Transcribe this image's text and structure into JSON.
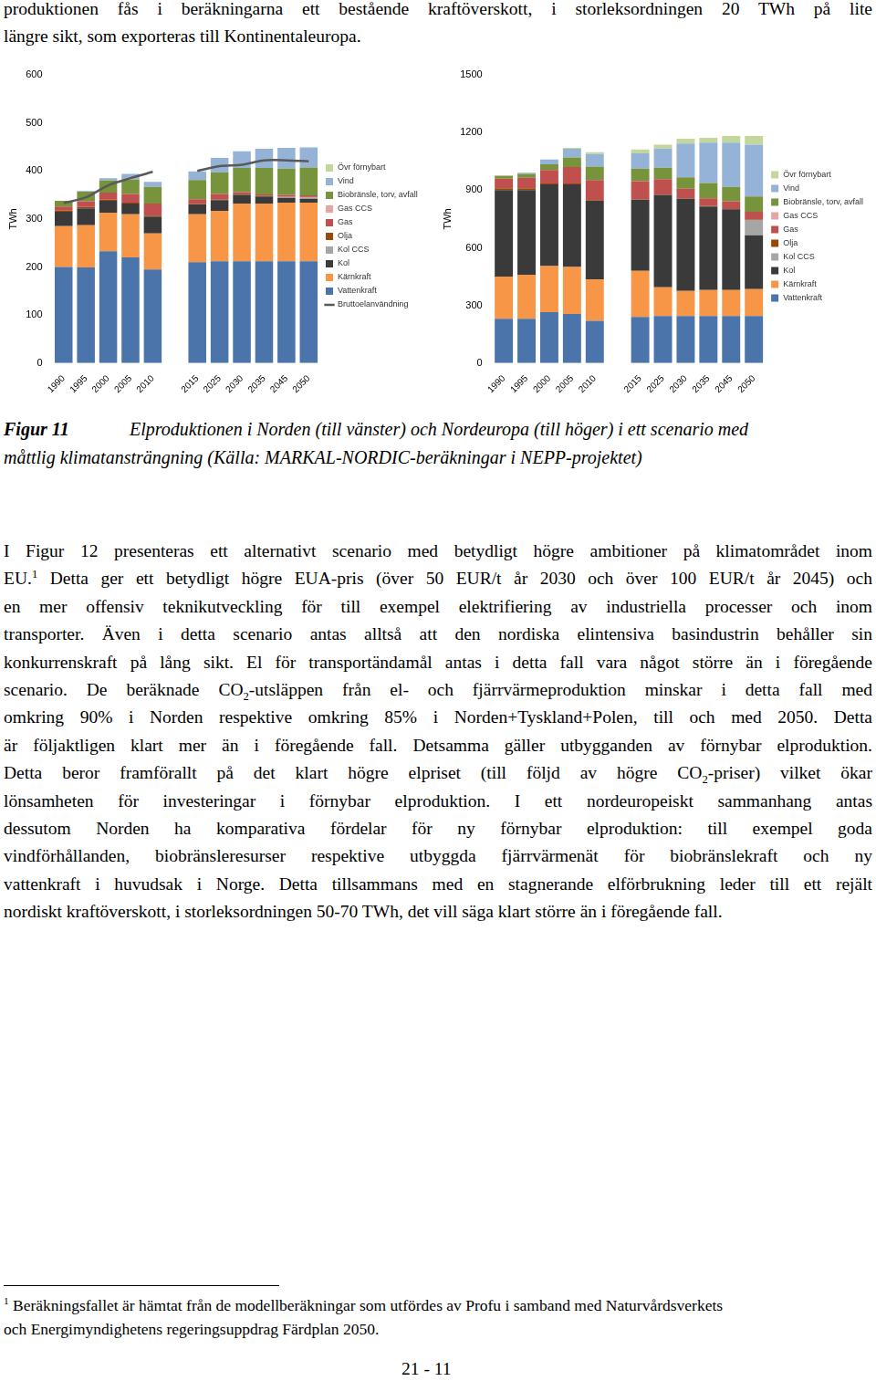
{
  "top_lines": [
    "produktionen fås i beräkningarna ett bestående kraftöverskott, i storleksordningen 20 TWh på lite",
    "längre sikt, som exporteras till Kontinentaleuropa."
  ],
  "chart_data": [
    {
      "type": "bar",
      "stacked": true,
      "legend": "right",
      "grid": false,
      "y_label": "TWh",
      "categories": [
        "1990",
        "1995",
        "2000",
        "2005",
        "2010",
        null,
        "2015",
        "2025",
        "2030",
        "2035",
        "2045",
        "2050"
      ],
      "ylim": [
        0,
        600
      ],
      "yticks": [
        0,
        100,
        200,
        300,
        400,
        500,
        600
      ],
      "series": [
        {
          "name": "Vattenkraft",
          "color": "#4a74aa",
          "values": [
            200,
            199,
            233,
            220,
            195,
            null,
            210,
            212,
            212,
            212,
            212,
            212
          ]
        },
        {
          "name": "Kärnkraft",
          "color": "#f79646",
          "values": [
            85,
            88,
            80,
            90,
            75,
            null,
            100,
            105,
            120,
            120,
            122,
            122
          ]
        },
        {
          "name": "Kol",
          "color": "#3a3a3a",
          "values": [
            30,
            35,
            25,
            22,
            35,
            null,
            20,
            22,
            18,
            15,
            10,
            8
          ]
        },
        {
          "name": "Kol CCS",
          "color": "#a6a6a6",
          "values": [
            0,
            0,
            0,
            0,
            0,
            null,
            0,
            0,
            0,
            0,
            2,
            3
          ]
        },
        {
          "name": "Olja",
          "color": "#984807",
          "values": [
            3,
            3,
            2,
            2,
            2,
            null,
            1,
            1,
            1,
            1,
            1,
            1
          ]
        },
        {
          "name": "Gas",
          "color": "#c0504d",
          "values": [
            8,
            12,
            15,
            18,
            25,
            null,
            10,
            12,
            5,
            3,
            3,
            3
          ]
        },
        {
          "name": "Gas CCS",
          "color": "#e6a5a3",
          "values": [
            0,
            0,
            0,
            0,
            0,
            null,
            0,
            0,
            0,
            0,
            0,
            0
          ]
        },
        {
          "name": "Biobränsle, torv, avfall",
          "color": "#77933c",
          "values": [
            12,
            20,
            25,
            30,
            35,
            null,
            40,
            45,
            50,
            55,
            55,
            58
          ]
        },
        {
          "name": "Vind",
          "color": "#95b3d7",
          "values": [
            0,
            1,
            5,
            12,
            10,
            null,
            18,
            30,
            35,
            40,
            43,
            42
          ]
        },
        {
          "name": "Övr förnybart",
          "color": "#c3d69b",
          "values": [
            0,
            0,
            0,
            0,
            0,
            null,
            0,
            0,
            0,
            0,
            0,
            0
          ]
        },
        {
          "name": "Bruttoelanvändning",
          "type": "line",
          "color": "#595959",
          "values": [
            333,
            345,
            370,
            385,
            398,
            null,
            400,
            410,
            413,
            422,
            422,
            420
          ]
        }
      ]
    },
    {
      "type": "bar",
      "stacked": true,
      "legend": "right",
      "grid": false,
      "y_label": "TWh",
      "categories": [
        "1990",
        "1995",
        "2000",
        "2005",
        "2010",
        null,
        "2015",
        "2025",
        "2030",
        "2035",
        "2045",
        "2050"
      ],
      "ylim": [
        0,
        1500
      ],
      "yticks": [
        0,
        300,
        600,
        900,
        1200,
        1500
      ],
      "series": [
        {
          "name": "Vattenkraft",
          "color": "#4a74aa",
          "values": [
            230,
            230,
            265,
            255,
            220,
            null,
            240,
            245,
            245,
            245,
            245,
            245
          ]
        },
        {
          "name": "Kärnkraft",
          "color": "#f79646",
          "values": [
            220,
            230,
            240,
            245,
            215,
            null,
            240,
            150,
            130,
            135,
            135,
            140
          ]
        },
        {
          "name": "Kol",
          "color": "#3a3a3a",
          "values": [
            450,
            440,
            425,
            430,
            410,
            null,
            370,
            480,
            480,
            435,
            420,
            280
          ]
        },
        {
          "name": "Kol CCS",
          "color": "#a6a6a6",
          "values": [
            0,
            0,
            0,
            0,
            0,
            null,
            0,
            0,
            0,
            0,
            0,
            80
          ]
        },
        {
          "name": "Olja",
          "color": "#984807",
          "values": [
            10,
            10,
            5,
            5,
            3,
            null,
            2,
            2,
            2,
            2,
            2,
            2
          ]
        },
        {
          "name": "Gas",
          "color": "#c0504d",
          "values": [
            50,
            55,
            70,
            85,
            105,
            null,
            95,
            80,
            50,
            40,
            40,
            40
          ]
        },
        {
          "name": "Gas CCS",
          "color": "#e6a5a3",
          "values": [
            0,
            0,
            0,
            0,
            0,
            null,
            0,
            0,
            0,
            0,
            0,
            0
          ]
        },
        {
          "name": "Biobränsle, torv, avfall",
          "color": "#77933c",
          "values": [
            15,
            20,
            30,
            50,
            70,
            null,
            65,
            60,
            60,
            80,
            75,
            80
          ]
        },
        {
          "name": "Vind",
          "color": "#95b3d7",
          "values": [
            0,
            5,
            25,
            45,
            65,
            null,
            80,
            100,
            175,
            210,
            230,
            270
          ]
        },
        {
          "name": "Övr förnybart",
          "color": "#c3d69b",
          "values": [
            0,
            0,
            0,
            5,
            10,
            null,
            20,
            20,
            25,
            25,
            35,
            45
          ]
        }
      ]
    }
  ],
  "caption": {
    "label": "Figur 11",
    "lines": [
      "Elproduktionen i Norden (till vänster) och Nordeuropa (till höger) i ett scenario med",
      "måttlig klimatansträngning (Källa: MARKAL-NORDIC-beräkningar i NEPP-projektet)"
    ]
  },
  "paragraph": [
    [
      "I Figur 12 presenteras ett alternativt scenario med betydligt högre ambitioner på klimatområdet inom"
    ],
    [
      "EU.",
      {
        "sup": "1"
      },
      " Detta ger ett betydligt högre EUA-pris (över 50 EUR/t år 2030 och över 100 EUR/t år 2045) och"
    ],
    [
      "en mer offensiv teknikutveckling för till exempel elektrifiering av industriella processer och inom"
    ],
    [
      "transporter. Även i detta scenario antas alltså att den nordiska elintensiva basindustrin behåller sin"
    ],
    [
      "konkurrenskraft på lång sikt. El för transportändamål antas i detta fall vara något större än i föregående"
    ],
    [
      "scenario. De beräknade CO",
      {
        "sub": "2"
      },
      "-utsläppen från el- och fjärrvärmeproduktion minskar i detta fall med"
    ],
    [
      "omkring 90% i Norden respektive omkring 85% i Norden+Tyskland+Polen, till och med 2050. Detta"
    ],
    [
      "är följaktligen klart mer än i föregående fall. Detsamma gäller utbygganden av förnybar elproduktion."
    ],
    [
      "Detta beror framförallt på det klart högre elpriset (till följd av högre CO",
      {
        "sub": "2"
      },
      "-priser) vilket ökar"
    ],
    [
      "lönsamheten för investeringar i förnybar elproduktion. I ett nordeuropeiskt sammanhang antas"
    ],
    [
      "dessutom Norden ha komparativa fördelar för ny förnybar elproduktion: till exempel goda"
    ],
    [
      "vindförhållanden, biobränsleresurser respektive utbyggda fjärrvärmenät för biobränslekraft och ny"
    ],
    [
      "vattenkraft i huvudsak i Norge. Detta tillsammans med en stagnerande elförbrukning leder till ett rejält"
    ],
    [
      "nordiskt kraftöverskott, i storleksordningen 50-70 TWh, det vill säga klart större än i föregående fall."
    ]
  ],
  "footnote": {
    "mark": "1",
    "lines": [
      "Beräkningsfallet är hämtat från de modellberäkningar som utfördes av Profu i samband med Naturvårdsverkets",
      "och Energimyndighetens regeringsuppdrag Färdplan 2050."
    ]
  },
  "page_number": "21 - 11"
}
